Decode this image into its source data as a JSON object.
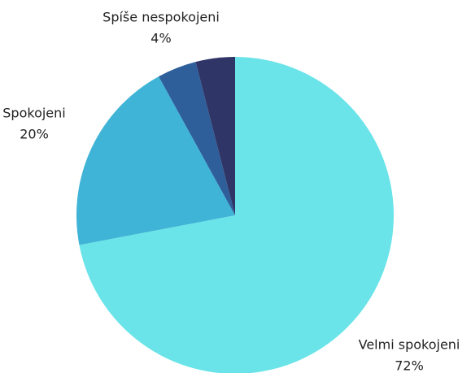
{
  "chart_data": {
    "type": "pie",
    "categories": [
      "Velmi spokojeni",
      "Spokojeni",
      "Spíše nespokojeni",
      null
    ],
    "values": [
      72,
      20,
      4,
      4
    ],
    "value_labels": [
      "72%",
      "20%",
      "4%",
      null
    ],
    "colors": [
      "#6ae4e9",
      "#40b4d6",
      "#2e5f9a",
      "#2f3566"
    ]
  }
}
